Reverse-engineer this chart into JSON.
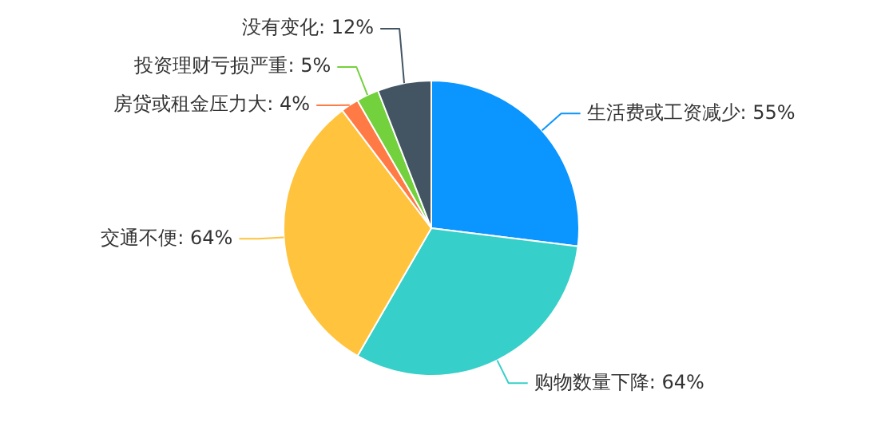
{
  "chart_data": {
    "type": "pie",
    "categories": [
      "生活费或工资减少",
      "购物数量下降",
      "交通不便",
      "房贷或租金压力大",
      "投资理财亏损严重",
      "没有变化"
    ],
    "values": [
      55,
      64,
      64,
      4,
      5,
      12
    ],
    "value_labels": [
      "55%",
      "64%",
      "64%",
      "4%",
      "5%",
      "12%"
    ],
    "colors": [
      "#0a95ff",
      "#37cfc9",
      "#ffc33d",
      "#ff7a45",
      "#73d13d",
      "#435563"
    ],
    "legend": false
  }
}
